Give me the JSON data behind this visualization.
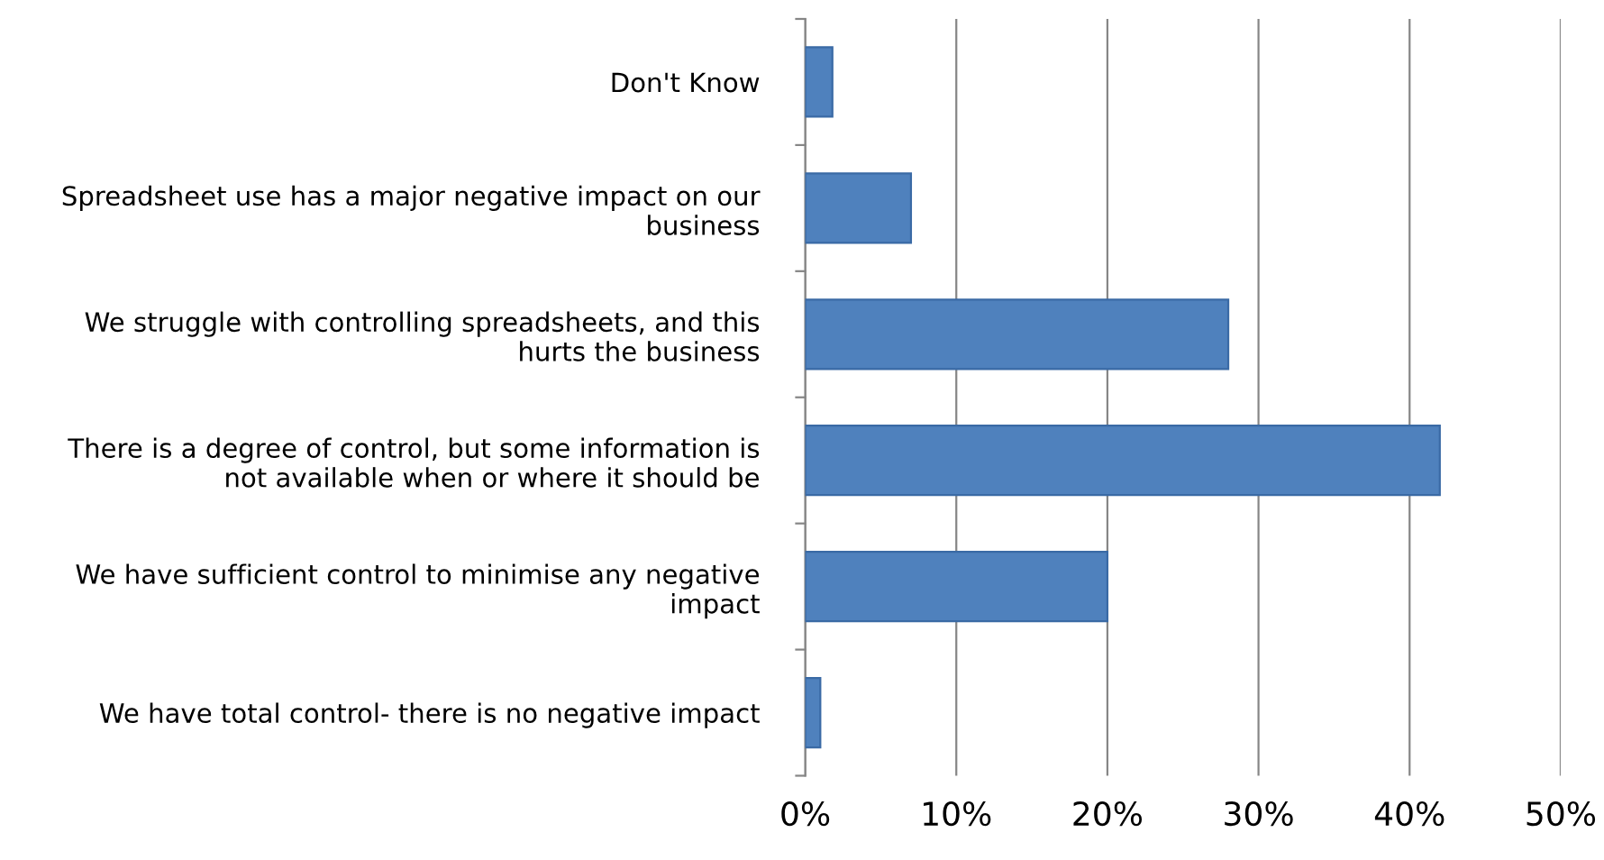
{
  "chart_data": {
    "type": "bar",
    "orientation": "horizontal",
    "categories": [
      "Don't Know",
      "Spreadsheet use has a major negative impact on our\nbusiness",
      "We struggle with controlling spreadsheets, and this\nhurts the business",
      "There is a degree of control, but some information is\nnot available when or where it should be",
      "We have sufficient control to minimise any negative\nimpact",
      "We have total control- there is no negative impact"
    ],
    "values": [
      1.8,
      7,
      28,
      42,
      20,
      1
    ],
    "color": "#4f81bd",
    "xlim": [
      0,
      50
    ],
    "xticks": [
      {
        "value": 0,
        "label": "0%"
      },
      {
        "value": 10,
        "label": "10%"
      },
      {
        "value": 20,
        "label": "20%"
      },
      {
        "value": 30,
        "label": "30%"
      },
      {
        "value": 40,
        "label": "40%"
      },
      {
        "value": 50,
        "label": "50%"
      }
    ],
    "grid": "x",
    "legend": false
  }
}
